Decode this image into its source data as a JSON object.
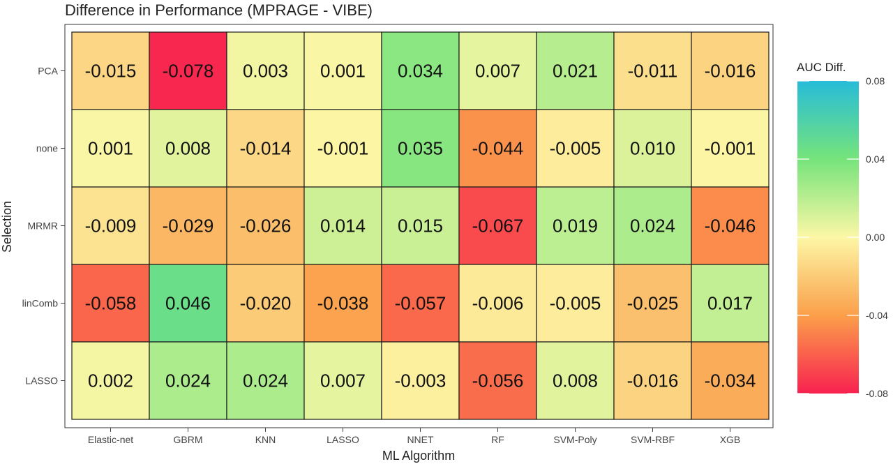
{
  "chart_data": {
    "type": "heatmap",
    "title": "Difference in Performance (MPRAGE - VIBE)",
    "xlabel": "ML Algorithm",
    "ylabel": "Selection",
    "x_categories": [
      "Elastic-net",
      "GBRM",
      "KNN",
      "LASSO",
      "NNET",
      "RF",
      "SVM-Poly",
      "SVM-RBF",
      "XGB"
    ],
    "y_categories": [
      "PCA",
      "none",
      "MRMR",
      "linComb",
      "LASSO"
    ],
    "values": [
      [
        -0.015,
        -0.078,
        0.003,
        0.001,
        0.034,
        0.007,
        0.021,
        -0.011,
        -0.016
      ],
      [
        0.001,
        0.008,
        -0.014,
        -0.001,
        0.035,
        -0.044,
        -0.005,
        0.01,
        -0.001
      ],
      [
        -0.009,
        -0.029,
        -0.026,
        0.014,
        0.015,
        -0.067,
        0.019,
        0.024,
        -0.046
      ],
      [
        -0.058,
        0.046,
        -0.02,
        -0.038,
        -0.057,
        -0.006,
        -0.005,
        -0.025,
        0.017
      ],
      [
        0.002,
        0.024,
        0.024,
        0.007,
        -0.003,
        -0.056,
        0.008,
        -0.016,
        -0.034
      ]
    ],
    "cell_labels": [
      [
        "-0.015",
        "-0.078",
        "0.003",
        "0.001",
        "0.034",
        "0.007",
        "0.021",
        "-0.011",
        "-0.016"
      ],
      [
        "0.001",
        "0.008",
        "-0.014",
        "-0.001",
        "0.035",
        "-0.044",
        "-0.005",
        "0.010",
        "-0.001"
      ],
      [
        "-0.009",
        "-0.029",
        "-0.026",
        "0.014",
        "0.015",
        "-0.067",
        "0.019",
        "0.024",
        "-0.046"
      ],
      [
        "-0.058",
        "0.046",
        "-0.020",
        "-0.038",
        "-0.057",
        "-0.006",
        "-0.005",
        "-0.025",
        "0.017"
      ],
      [
        "0.002",
        "0.024",
        "0.024",
        "0.007",
        "-0.003",
        "-0.056",
        "0.008",
        "-0.016",
        "-0.034"
      ]
    ],
    "legend": {
      "title": "AUC Diff.",
      "range": [
        -0.08,
        0.08
      ],
      "ticks": [
        0.08,
        0.04,
        0.0,
        -0.04,
        -0.08
      ],
      "tick_labels": [
        "0.08",
        "0.04",
        "0.00",
        "-0.04",
        "-0.08"
      ],
      "colors": [
        {
          "value": -0.08,
          "color": "#f8214f"
        },
        {
          "value": -0.04,
          "color": "#fb9f4a"
        },
        {
          "value": 0.0,
          "color": "#fcf7a6"
        },
        {
          "value": 0.04,
          "color": "#76e47b"
        },
        {
          "value": 0.08,
          "color": "#27bcd9"
        }
      ],
      "placement": "right"
    },
    "panel_background": "#ffffff",
    "grid": false
  }
}
